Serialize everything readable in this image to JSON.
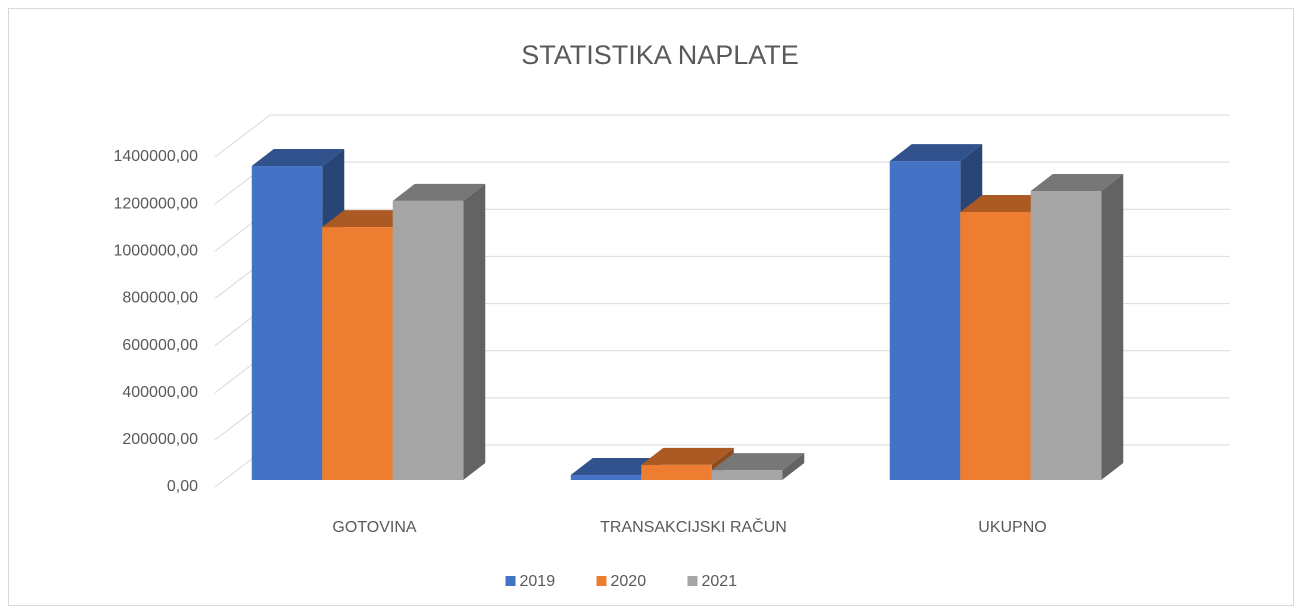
{
  "chart_data": {
    "type": "bar3d",
    "title": "STATISTIKA NAPLATE",
    "categories": [
      "GOTOVINA",
      "TRANSAKCIJSKI RAČUN",
      "UKUPNO"
    ],
    "series": [
      {
        "name": "2019",
        "color": "#4472c4",
        "values": [
          1332000,
          21000,
          1353000
        ]
      },
      {
        "name": "2020",
        "color": "#ed7d31",
        "values": [
          1073000,
          64000,
          1137000
        ]
      },
      {
        "name": "2021",
        "color": "#a5a5a5",
        "values": [
          1184000,
          42000,
          1226000
        ]
      }
    ],
    "ylim": [
      0,
      1400000
    ],
    "yticks": [
      {
        "value": 0,
        "label": "0,00"
      },
      {
        "value": 200000,
        "label": "200000,00"
      },
      {
        "value": 400000,
        "label": "400000,00"
      },
      {
        "value": 600000,
        "label": "600000,00"
      },
      {
        "value": 800000,
        "label": "800000,00"
      },
      {
        "value": 1000000,
        "label": "1000000,00"
      },
      {
        "value": 1200000,
        "label": "1200000,00"
      },
      {
        "value": 1400000,
        "label": "1400000,00"
      }
    ],
    "grid": true,
    "legend": "bottom"
  }
}
